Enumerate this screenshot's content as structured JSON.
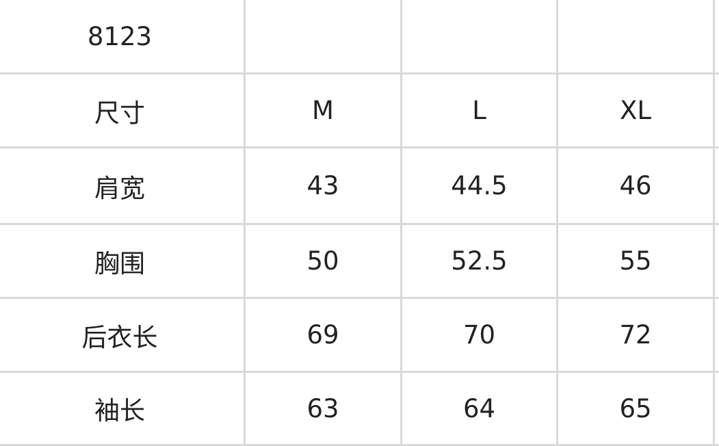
{
  "table": {
    "title": "8123",
    "header": [
      "尺寸",
      "M",
      "L",
      "XL"
    ],
    "rows": [
      [
        "肩宽",
        "43",
        "44.5",
        "46"
      ],
      [
        "胸围",
        "50",
        "52.5",
        "55"
      ],
      [
        "后衣长",
        "69",
        "70",
        "72"
      ],
      [
        "袖长",
        "63",
        "64",
        "65"
      ]
    ]
  }
}
